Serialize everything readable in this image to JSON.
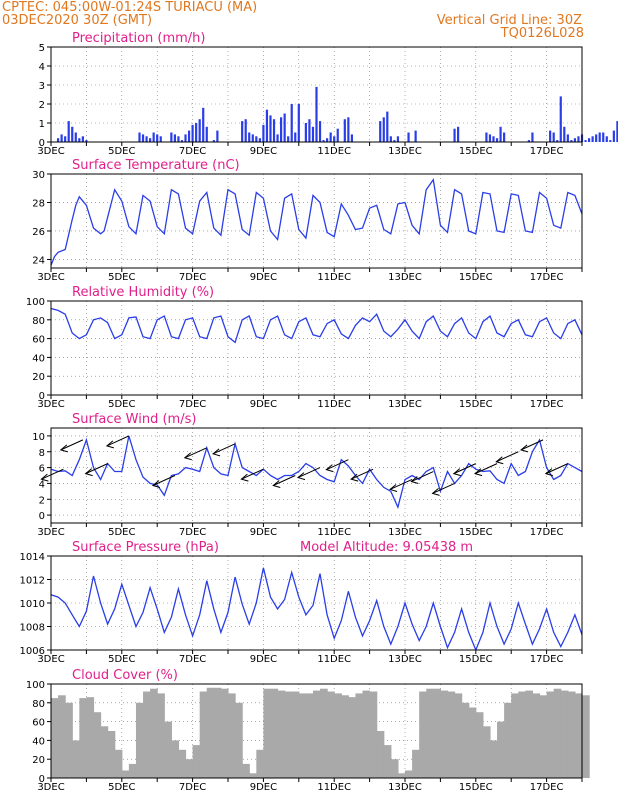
{
  "header": {
    "station": "CPTEC:   045:00W-01:24S   TURIACU  (MA)",
    "run": "03DEC2020  30Z  (GMT)",
    "grid": "Vertical Grid Line: 30Z",
    "code": "TQ0126L028"
  },
  "colors": {
    "header": "#e07820",
    "title": "#e0208a",
    "line": "#2a3ee8",
    "cloud": "#a9a9a9",
    "wind_arrow": "#000000"
  },
  "x_ticks": [
    "3DEC",
    "5DEC",
    "7DEC",
    "9DEC",
    "11DEC",
    "13DEC",
    "15DEC",
    "17DEC"
  ],
  "chart_data": [
    {
      "type": "bar",
      "title": "Precipitation (mm/h)",
      "x_range": [
        0,
        15
      ],
      "ylim": [
        0,
        5
      ],
      "y_ticks": [
        0,
        1,
        2,
        3,
        4,
        5
      ],
      "x_day": [
        0.2,
        0.3,
        0.4,
        0.5,
        0.6,
        0.7,
        0.8,
        0.9,
        1.0,
        2.5,
        2.6,
        2.7,
        2.8,
        2.9,
        3.0,
        3.1,
        3.4,
        3.5,
        3.6,
        3.7,
        3.8,
        3.9,
        4.0,
        4.1,
        4.2,
        4.3,
        4.4,
        4.6,
        4.7,
        5.4,
        5.5,
        5.6,
        5.7,
        5.8,
        5.9,
        6.0,
        6.1,
        6.2,
        6.3,
        6.4,
        6.5,
        6.6,
        6.7,
        6.8,
        6.9,
        7.0,
        7.2,
        7.3,
        7.4,
        7.5,
        7.6,
        7.7,
        7.8,
        7.9,
        8.0,
        8.1,
        8.3,
        8.4,
        8.5,
        9.3,
        9.4,
        9.5,
        9.6,
        9.7,
        9.8,
        10.1,
        10.3,
        11.4,
        11.5,
        12.3,
        12.4,
        12.5,
        12.6,
        12.7,
        12.8,
        13.5,
        13.6,
        14.1,
        14.2,
        14.3,
        14.4,
        14.5,
        14.6,
        14.7,
        14.8,
        14.9,
        15.0,
        15.1,
        15.2,
        15.3,
        15.4,
        15.5,
        15.6,
        15.7,
        15.8,
        15.9,
        16.0,
        16.1,
        16.2,
        16.3,
        16.4,
        16.5,
        16.6,
        16.7,
        16.8,
        16.9,
        17.0,
        17.1,
        17.2,
        17.3,
        17.4,
        17.5,
        17.6,
        17.7,
        17.9
      ],
      "values": [
        0.2,
        0.4,
        0.3,
        1.1,
        0.8,
        0.5,
        0.2,
        0.3,
        0.1,
        0.5,
        0.4,
        0.3,
        0.2,
        0.5,
        0.4,
        0.3,
        0.5,
        0.4,
        0.3,
        0.1,
        0.4,
        0.6,
        0.9,
        1.0,
        1.2,
        1.8,
        0.8,
        0.1,
        0.6,
        1.1,
        1.2,
        0.5,
        0.4,
        0.3,
        0.2,
        0.9,
        1.7,
        1.4,
        1.2,
        0.4,
        1.3,
        1.5,
        0.3,
        2.0,
        0.5,
        2.0,
        1.0,
        1.2,
        0.8,
        2.9,
        1.1,
        0.1,
        0.2,
        0.5,
        0.3,
        0.7,
        1.2,
        1.3,
        0.4,
        1.1,
        1.3,
        1.6,
        0.3,
        0.1,
        0.3,
        0.5,
        0.6,
        0.7,
        0.8,
        0.5,
        0.4,
        0.3,
        0.2,
        0.8,
        0.5,
        0.1,
        0.5,
        0.6,
        0.5,
        0.1,
        2.4,
        0.8,
        0.4,
        0.1,
        0.2,
        0.3,
        0.4,
        0.1,
        0.2,
        0.3,
        0.4,
        0.5,
        0.5,
        0.3,
        0.1,
        0.6,
        1.1,
        1.4,
        0.5,
        1.0,
        0.6,
        0.7,
        0.8,
        2.1,
        2.3,
        2.8,
        1.8,
        1.2,
        0.5,
        0.3,
        0.2,
        0.4,
        0.1,
        0.1,
        2.4
      ],
      "xlabel": "",
      "ylabel": ""
    },
    {
      "type": "line",
      "title": "Surface Temperature (nC)",
      "x_range": [
        0,
        15
      ],
      "ylim": [
        23.4,
        30
      ],
      "y_ticks": [
        24,
        26,
        28,
        30
      ],
      "x_day": [
        0.0,
        0.1,
        0.2,
        0.4,
        0.6,
        0.7,
        0.8,
        1.0,
        1.2,
        1.4,
        1.5,
        1.8,
        2.0,
        2.2,
        2.4,
        2.6,
        2.8,
        3.0,
        3.2,
        3.4,
        3.6,
        3.8,
        4.0,
        4.2,
        4.4,
        4.6,
        4.8,
        5.0,
        5.2,
        5.4,
        5.6,
        5.8,
        6.0,
        6.2,
        6.4,
        6.6,
        6.8,
        7.0,
        7.2,
        7.4,
        7.6,
        7.8,
        8.0,
        8.2,
        8.4,
        8.6,
        8.8,
        9.0,
        9.2,
        9.4,
        9.6,
        9.8,
        10.0,
        10.2,
        10.4,
        10.6,
        10.8,
        11.0,
        11.2,
        11.4,
        11.6,
        11.8,
        12.0,
        12.2,
        12.4,
        12.6,
        12.8,
        13.0,
        13.2,
        13.4,
        13.6,
        13.8,
        14.0,
        14.2,
        14.4,
        14.6,
        14.8,
        15.0
      ],
      "values": [
        23.6,
        24.2,
        24.5,
        24.7,
        26.8,
        27.8,
        28.4,
        27.8,
        26.2,
        25.8,
        26.0,
        28.9,
        28.1,
        26.3,
        25.8,
        28.5,
        28.1,
        26.3,
        25.8,
        28.9,
        28.6,
        26.2,
        25.8,
        28.1,
        28.7,
        26.2,
        25.7,
        28.9,
        28.6,
        26.1,
        25.7,
        28.7,
        28.3,
        26.0,
        25.4,
        28.3,
        28.6,
        26.1,
        25.5,
        28.5,
        28.0,
        25.9,
        25.6,
        27.9,
        27.1,
        26.1,
        26.2,
        27.6,
        27.8,
        26.1,
        25.8,
        27.9,
        28.0,
        26.4,
        25.8,
        28.9,
        29.6,
        26.4,
        25.9,
        28.9,
        28.6,
        26.0,
        25.8,
        28.7,
        28.6,
        26.0,
        25.9,
        28.6,
        28.5,
        26.0,
        25.9,
        28.7,
        28.3,
        26.4,
        26.2,
        28.7,
        28.5,
        27.2
      ],
      "xlabel": "",
      "ylabel": ""
    },
    {
      "type": "line",
      "title": "Relative Humidity (%)",
      "x_range": [
        0,
        15
      ],
      "ylim": [
        0,
        100
      ],
      "y_ticks": [
        0,
        20,
        40,
        60,
        80,
        100
      ],
      "x_day": [
        0.0,
        0.2,
        0.4,
        0.6,
        0.8,
        1.0,
        1.2,
        1.4,
        1.6,
        1.8,
        2.0,
        2.2,
        2.4,
        2.6,
        2.8,
        3.0,
        3.2,
        3.4,
        3.6,
        3.8,
        4.0,
        4.2,
        4.4,
        4.6,
        4.8,
        5.0,
        5.2,
        5.4,
        5.6,
        5.8,
        6.0,
        6.2,
        6.4,
        6.6,
        6.8,
        7.0,
        7.2,
        7.4,
        7.6,
        7.8,
        8.0,
        8.2,
        8.4,
        8.6,
        8.8,
        9.0,
        9.2,
        9.4,
        9.6,
        9.8,
        10.0,
        10.2,
        10.4,
        10.6,
        10.8,
        11.0,
        11.2,
        11.4,
        11.6,
        11.8,
        12.0,
        12.2,
        12.4,
        12.6,
        12.8,
        13.0,
        13.2,
        13.4,
        13.6,
        13.8,
        14.0,
        14.2,
        14.4,
        14.6,
        14.8,
        15.0
      ],
      "values": [
        92,
        90,
        86,
        66,
        60,
        64,
        80,
        82,
        77,
        60,
        64,
        82,
        83,
        62,
        60,
        80,
        84,
        62,
        60,
        80,
        82,
        62,
        60,
        82,
        84,
        62,
        56,
        80,
        84,
        62,
        60,
        80,
        84,
        64,
        60,
        78,
        82,
        64,
        62,
        76,
        80,
        65,
        60,
        74,
        82,
        78,
        86,
        68,
        62,
        70,
        80,
        68,
        60,
        78,
        84,
        68,
        62,
        76,
        82,
        66,
        60,
        78,
        84,
        66,
        62,
        76,
        80,
        64,
        62,
        78,
        82,
        66,
        60,
        76,
        80,
        64
      ],
      "xlabel": "",
      "ylabel": ""
    },
    {
      "type": "line",
      "title": "Surface Wind (m/s)",
      "x_range": [
        0,
        15
      ],
      "ylim": [
        -1,
        11
      ],
      "y_ticks": [
        0,
        2,
        4,
        6,
        8,
        10
      ],
      "x_day": [
        0.0,
        0.2,
        0.4,
        0.6,
        0.8,
        1.0,
        1.2,
        1.4,
        1.6,
        1.8,
        2.0,
        2.2,
        2.4,
        2.6,
        2.8,
        3.0,
        3.2,
        3.4,
        3.6,
        3.8,
        4.0,
        4.2,
        4.4,
        4.6,
        4.8,
        5.0,
        5.2,
        5.4,
        5.6,
        5.8,
        6.0,
        6.2,
        6.4,
        6.6,
        6.8,
        7.0,
        7.2,
        7.4,
        7.6,
        7.8,
        8.0,
        8.2,
        8.4,
        8.6,
        8.8,
        9.0,
        9.2,
        9.4,
        9.6,
        9.8,
        10.0,
        10.2,
        10.4,
        10.6,
        10.8,
        11.0,
        11.2,
        11.4,
        11.6,
        11.8,
        12.0,
        12.2,
        12.4,
        12.6,
        12.8,
        13.0,
        13.2,
        13.4,
        13.6,
        13.8,
        14.0,
        14.2,
        14.4,
        14.6,
        14.8,
        15.0
      ],
      "values": [
        5.8,
        5.5,
        5.6,
        5.0,
        7.0,
        9.5,
        6.0,
        4.5,
        6.5,
        5.5,
        5.5,
        10.0,
        7.0,
        4.8,
        4.0,
        3.8,
        2.5,
        5.0,
        5.2,
        6.0,
        5.8,
        5.5,
        8.5,
        6.0,
        5.2,
        5.0,
        9.0,
        6.0,
        5.5,
        5.0,
        5.8,
        5.0,
        4.5,
        5.0,
        5.0,
        5.5,
        6.5,
        6.0,
        5.0,
        4.5,
        4.2,
        7.0,
        6.2,
        5.0,
        4.0,
        5.8,
        4.5,
        3.5,
        3.0,
        1.0,
        4.5,
        5.0,
        4.5,
        5.5,
        6.0,
        3.0,
        5.5,
        4.0,
        5.0,
        6.5,
        5.8,
        5.5,
        5.6,
        4.5,
        4.0,
        6.5,
        5.0,
        5.5,
        8.0,
        9.5,
        6.0,
        4.5,
        5.0,
        6.5,
        6.0,
        5.5
      ],
      "arrows_x_day": [
        0.35,
        0.9,
        1.6,
        2.2,
        3.5,
        4.4,
        5.2,
        6.0,
        6.9,
        7.6,
        8.4,
        9.1,
        10.2,
        10.8,
        11.4,
        12.0,
        12.6,
        13.2,
        13.9,
        14.6
      ],
      "arrow_magnitudes": [
        5.8,
        9.5,
        6.5,
        10.0,
        5.0,
        8.5,
        9.0,
        5.8,
        5.0,
        6.0,
        7.0,
        5.8,
        4.5,
        5.5,
        4.0,
        6.5,
        6.5,
        8.0,
        9.5,
        6.5
      ],
      "xlabel": "",
      "ylabel": ""
    },
    {
      "type": "line",
      "title": "Surface Pressure (hPa)",
      "annotation": "Model Altitude: 9.05438  m",
      "x_range": [
        0,
        15
      ],
      "ylim": [
        1006,
        1014
      ],
      "y_ticks": [
        1006,
        1008,
        1010,
        1012,
        1014
      ],
      "x_day": [
        0.0,
        0.2,
        0.4,
        0.6,
        0.8,
        1.0,
        1.2,
        1.4,
        1.6,
        1.8,
        2.0,
        2.2,
        2.4,
        2.6,
        2.8,
        3.0,
        3.2,
        3.4,
        3.6,
        3.8,
        4.0,
        4.2,
        4.4,
        4.6,
        4.8,
        5.0,
        5.2,
        5.4,
        5.6,
        5.8,
        6.0,
        6.2,
        6.4,
        6.6,
        6.8,
        7.0,
        7.2,
        7.4,
        7.6,
        7.8,
        8.0,
        8.2,
        8.4,
        8.6,
        8.8,
        9.0,
        9.2,
        9.4,
        9.6,
        9.8,
        10.0,
        10.2,
        10.4,
        10.6,
        10.8,
        11.0,
        11.2,
        11.4,
        11.6,
        11.8,
        12.0,
        12.2,
        12.4,
        12.6,
        12.8,
        13.0,
        13.2,
        13.4,
        13.6,
        13.8,
        14.0,
        14.2,
        14.4,
        14.6,
        14.8,
        15.0
      ],
      "values": [
        1010.7,
        1010.5,
        1010.0,
        1009.0,
        1008.0,
        1009.3,
        1012.3,
        1010.0,
        1008.2,
        1009.5,
        1011.6,
        1009.8,
        1008.0,
        1009.2,
        1011.3,
        1009.5,
        1007.5,
        1008.8,
        1011.2,
        1009.0,
        1007.2,
        1009.0,
        1011.9,
        1009.5,
        1007.5,
        1009.2,
        1012.2,
        1009.9,
        1008.2,
        1010.0,
        1013.0,
        1010.5,
        1009.5,
        1010.3,
        1012.6,
        1010.5,
        1009.0,
        1009.8,
        1012.5,
        1009.0,
        1007.0,
        1008.5,
        1011.0,
        1008.8,
        1007.2,
        1008.5,
        1010.2,
        1008.0,
        1006.5,
        1008.0,
        1010.0,
        1008.2,
        1006.8,
        1008.0,
        1010.0,
        1008.0,
        1006.2,
        1007.5,
        1009.5,
        1007.5,
        1006.0,
        1007.5,
        1010.0,
        1008.0,
        1006.5,
        1007.8,
        1010.0,
        1008.2,
        1006.5,
        1007.8,
        1009.5,
        1007.5,
        1006.3,
        1007.5,
        1009.0,
        1007.3
      ],
      "xlabel": "",
      "ylabel": ""
    },
    {
      "type": "bar",
      "title": "Cloud Cover (%)",
      "x_range": [
        0,
        15
      ],
      "ylim": [
        0,
        100
      ],
      "y_ticks": [
        0,
        20,
        40,
        60,
        80,
        100
      ],
      "x_day": [
        0.0,
        0.2,
        0.4,
        0.6,
        0.8,
        1.0,
        1.2,
        1.4,
        1.6,
        1.8,
        2.0,
        2.2,
        2.4,
        2.6,
        2.8,
        3.0,
        3.2,
        3.4,
        3.6,
        3.8,
        4.0,
        4.2,
        4.4,
        4.6,
        4.8,
        5.0,
        5.2,
        5.4,
        5.6,
        5.8,
        6.0,
        6.2,
        6.4,
        6.6,
        6.8,
        7.0,
        7.2,
        7.4,
        7.6,
        7.8,
        8.0,
        8.2,
        8.4,
        8.6,
        8.8,
        9.0,
        9.2,
        9.4,
        9.6,
        9.8,
        10.0,
        10.2,
        10.4,
        10.6,
        10.8,
        11.0,
        11.2,
        11.4,
        11.6,
        11.8,
        12.0,
        12.2,
        12.4,
        12.6,
        12.8,
        13.0,
        13.2,
        13.4,
        13.6,
        13.8,
        14.0,
        14.2,
        14.4,
        14.6,
        14.8,
        15.0
      ],
      "values": [
        85,
        88,
        80,
        40,
        85,
        86,
        70,
        55,
        50,
        30,
        8,
        15,
        80,
        92,
        95,
        90,
        60,
        40,
        30,
        20,
        35,
        92,
        96,
        96,
        95,
        90,
        80,
        15,
        5,
        30,
        95,
        95,
        93,
        92,
        92,
        90,
        90,
        93,
        95,
        92,
        90,
        88,
        86,
        90,
        93,
        92,
        50,
        35,
        20,
        5,
        8,
        30,
        92,
        95,
        95,
        93,
        92,
        90,
        80,
        75,
        70,
        55,
        40,
        60,
        80,
        90,
        92,
        93,
        90,
        88,
        92,
        95,
        93,
        92,
        90,
        88
      ],
      "xlabel": "",
      "ylabel": ""
    }
  ]
}
